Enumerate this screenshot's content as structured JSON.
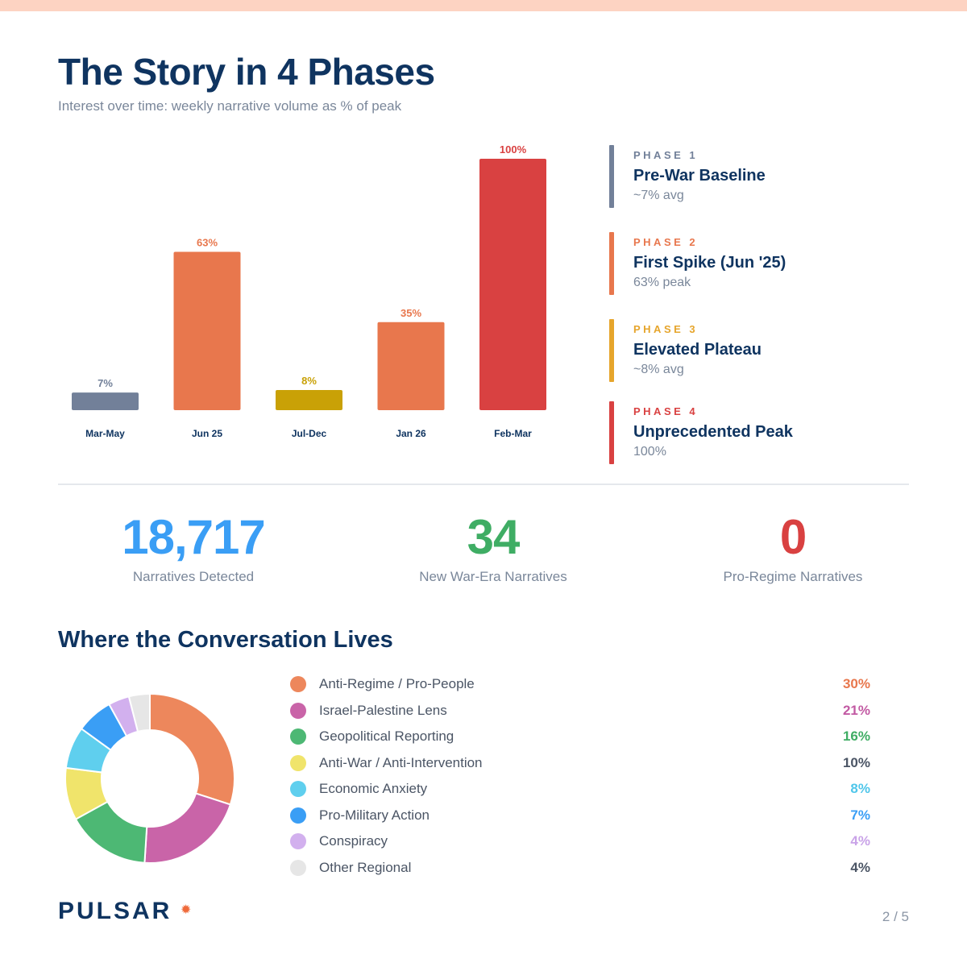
{
  "header": {
    "title": "The Story in 4 Phases",
    "subtitle": "Interest over time: weekly narrative volume as % of peak"
  },
  "chart_data": [
    {
      "type": "bar",
      "categories": [
        "Mar-May",
        "Jun 25",
        "Jul-Dec",
        "Jan 26",
        "Feb-Mar"
      ],
      "values": [
        7,
        63,
        8,
        35,
        100
      ],
      "value_labels": [
        "7%",
        "63%",
        "8%",
        "35%",
        "100%"
      ],
      "colors": [
        "#728099",
        "#e8774d",
        "#c9a106",
        "#e8774d",
        "#d94141"
      ],
      "ylim": [
        0,
        100
      ],
      "grid": false,
      "xlabel": "",
      "ylabel": ""
    },
    {
      "type": "pie",
      "style": "donut",
      "categories": [
        "Anti-Regime / Pro-People",
        "Israel-Palestine Lens",
        "Geopolitical Reporting",
        "Anti-War / Anti-Intervention",
        "Economic Anxiety",
        "Pro-Military Action",
        "Conspiracy",
        "Other Regional"
      ],
      "values": [
        30,
        21,
        16,
        10,
        8,
        7,
        4,
        4
      ],
      "colors": [
        "#ed875c",
        "#c964a8",
        "#4db874",
        "#f0e46b",
        "#5fcfee",
        "#3a9ef5",
        "#d2b0ee",
        "#e6e6e6"
      ]
    }
  ],
  "phases": [
    {
      "tag": "PHASE 1",
      "title": "Pre-War Baseline",
      "desc": "~7% avg",
      "color": "#728099"
    },
    {
      "tag": "PHASE 2",
      "title": "First Spike (Jun '25)",
      "desc": "63% peak",
      "color": "#e8774d"
    },
    {
      "tag": "PHASE 3",
      "title": "Elevated Plateau",
      "desc": "~8% avg",
      "color": "#e6a52c"
    },
    {
      "tag": "PHASE 4",
      "title": "Unprecedented Peak",
      "desc": "100%",
      "color": "#d94141"
    }
  ],
  "stats": [
    {
      "value": "18,717",
      "label": "Narratives Detected",
      "color": "#3a9ef5"
    },
    {
      "value": "34",
      "label": "New War-Era Narratives",
      "color": "#3fad64"
    },
    {
      "value": "0",
      "label": "Pro-Regime Narratives",
      "color": "#d94141"
    }
  ],
  "section": {
    "title": "Where the Conversation Lives"
  },
  "legend": [
    {
      "label": "Anti-Regime / Pro-People",
      "value": "30%",
      "color": "#ed875c",
      "value_color": "#e8774d"
    },
    {
      "label": "Israel-Palestine Lens",
      "value": "21%",
      "color": "#c964a8",
      "value_color": "#c25aa3"
    },
    {
      "label": "Geopolitical Reporting",
      "value": "16%",
      "color": "#4db874",
      "value_color": "#3fad64"
    },
    {
      "label": "Anti-War / Anti-Intervention",
      "value": "10%",
      "color": "#f0e46b",
      "value_color": "#4b5565"
    },
    {
      "label": "Economic Anxiety",
      "value": "8%",
      "color": "#5fcfee",
      "value_color": "#4fc6ea"
    },
    {
      "label": "Pro-Military Action",
      "value": "7%",
      "color": "#3a9ef5",
      "value_color": "#3a9ef5"
    },
    {
      "label": "Conspiracy",
      "value": "4%",
      "color": "#d2b0ee",
      "value_color": "#c9a3e8"
    },
    {
      "label": "Other Regional",
      "value": "4%",
      "color": "#e6e6e6",
      "value_color": "#4b5565"
    }
  ],
  "footer": {
    "brand": "PULSAR",
    "brand_mark": "✹",
    "brand_mark_color": "#ef6a3a",
    "page": "2 / 5"
  }
}
